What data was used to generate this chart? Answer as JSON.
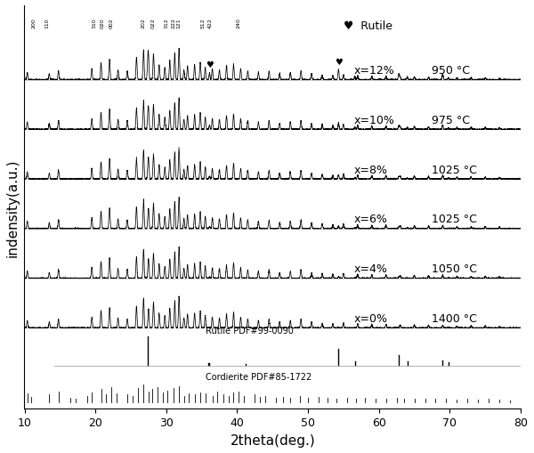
{
  "xlabel": "2theta(deg.)",
  "ylabel": "indensity(a.u.)",
  "xlim": [
    10,
    80
  ],
  "background_color": "#ffffff",
  "series_labels_x": [
    "x=12%",
    "x=10%",
    "x=8%",
    "x=6%",
    "x=4%",
    "x=0%"
  ],
  "series_labels_T": [
    "950 °C",
    "975 °C",
    "1025 °C",
    "1025 °C",
    "1050 °C",
    "1400 °C"
  ],
  "hkl_labels": [
    "200",
    "110",
    "310",
    "020",
    "002",
    "202",
    "022",
    "312",
    "222",
    "121",
    "512",
    "422",
    "240"
  ],
  "hkl_positions": [
    11.3,
    13.2,
    19.8,
    21.0,
    22.3,
    26.7,
    28.2,
    30.0,
    31.0,
    31.8,
    35.2,
    36.2,
    40.2
  ],
  "rutile_pdf_peaks": [
    27.4,
    35.9,
    36.1,
    41.2,
    54.3,
    56.6,
    62.8,
    64.0,
    69.0,
    69.8
  ],
  "rutile_pdf_heights": [
    1.0,
    0.08,
    0.08,
    0.05,
    0.55,
    0.12,
    0.35,
    0.12,
    0.15,
    0.1
  ],
  "cordierite_pdf_peaks": [
    10.4,
    11.0,
    13.5,
    14.8,
    16.5,
    17.2,
    18.8,
    19.5,
    20.8,
    21.5,
    22.2,
    23.0,
    24.5,
    25.2,
    26.0,
    26.8,
    27.5,
    28.0,
    28.8,
    29.5,
    30.2,
    31.0,
    31.8,
    32.5,
    33.2,
    34.0,
    34.8,
    35.5,
    36.5,
    37.2,
    38.0,
    38.8,
    39.5,
    40.2,
    41.0,
    42.5,
    43.2,
    44.0,
    45.5,
    46.5,
    47.5,
    48.8,
    50.0,
    51.5,
    52.8,
    54.0,
    55.5,
    56.8,
    58.0,
    59.5,
    61.0,
    62.5,
    63.5,
    65.0,
    66.5,
    68.0,
    69.5,
    71.0,
    72.5,
    74.0,
    75.5,
    77.0,
    78.5
  ],
  "cordierite_pdf_heights": [
    0.4,
    0.25,
    0.35,
    0.5,
    0.2,
    0.15,
    0.3,
    0.45,
    0.6,
    0.35,
    0.7,
    0.4,
    0.35,
    0.3,
    0.65,
    0.8,
    0.5,
    0.6,
    0.7,
    0.45,
    0.55,
    0.65,
    0.75,
    0.3,
    0.4,
    0.35,
    0.45,
    0.4,
    0.3,
    0.5,
    0.35,
    0.3,
    0.45,
    0.5,
    0.3,
    0.35,
    0.25,
    0.3,
    0.2,
    0.25,
    0.2,
    0.3,
    0.2,
    0.25,
    0.2,
    0.15,
    0.2,
    0.15,
    0.2,
    0.15,
    0.18,
    0.2,
    0.15,
    0.18,
    0.15,
    0.18,
    0.15,
    0.12,
    0.15,
    0.12,
    0.15,
    0.12,
    0.1
  ]
}
